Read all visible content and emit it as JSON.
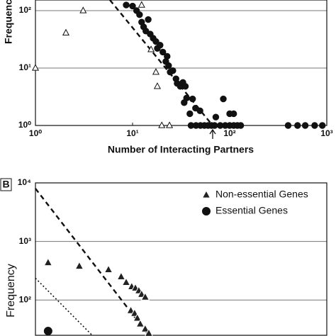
{
  "chart_data": [
    {
      "type": "scatter",
      "xlabel": "Number of Interacting Partners",
      "ylabel": "Frequency",
      "log_x": true,
      "log_y": true,
      "grid": true,
      "xlim": [
        1,
        1000
      ],
      "ylim": [
        1,
        153
      ],
      "xticks": [
        {
          "value": 1,
          "label": "10⁰"
        },
        {
          "value": 10,
          "label": "10¹"
        },
        {
          "value": 100,
          "label": "10²"
        },
        {
          "value": 1000,
          "label": "10³"
        }
      ],
      "yticks": [
        {
          "value": 1,
          "label": "10⁰"
        },
        {
          "value": 10,
          "label": "10¹"
        },
        {
          "value": 100,
          "label": "10²"
        }
      ],
      "series": [
        {
          "marker": "triangle",
          "color": "#111111",
          "fill": "#ffffff",
          "x": [
            1,
            2.06,
            3.1,
            12.4,
            15.5,
            17.4,
            18,
            20,
            24
          ],
          "y": [
            10,
            41,
            100,
            125,
            21,
            8.5,
            4.8,
            1,
            1
          ]
        },
        {
          "marker": "circle",
          "color": "#111111",
          "fill": "#111111",
          "x": [
            8.6,
            10,
            11,
            11.8,
            12.4,
            13,
            13.7,
            14.5,
            15.2,
            16.3,
            17.4,
            18,
            19.2,
            20.5,
            22,
            22.7,
            23.5,
            24.4,
            26,
            28,
            28.8,
            31,
            33,
            35,
            36,
            34,
            38.9,
            41.5,
            44.5,
            49.5,
            72,
            86,
            100,
            110,
            40,
            45,
            50,
            55,
            60,
            65,
            70,
            80,
            90,
            100,
            110,
            120,
            130,
            400,
            500,
            600,
            750,
            900
          ],
          "y": [
            125,
            120,
            100,
            85,
            63,
            52,
            44,
            70,
            39,
            33,
            29,
            22,
            25,
            19,
            13,
            16,
            11,
            8.5,
            9,
            6.5,
            5.4,
            4.8,
            5.6,
            4.8,
            3,
            2.5,
            1.6,
            2.9,
            2,
            1.8,
            1.4,
            2.9,
            1.6,
            1.6,
            1,
            1,
            1,
            1,
            1,
            1,
            1,
            1,
            1,
            1,
            1,
            1,
            1,
            1,
            1,
            1,
            1,
            1
          ]
        }
      ],
      "lines": [
        {
          "style": "dashed",
          "x": [
            5.84,
            66.8
          ],
          "y": [
            153,
            1
          ]
        }
      ]
    },
    {
      "type": "scatter",
      "panel_label": "B",
      "ylabel": "Frequency",
      "log_x": true,
      "log_y": true,
      "grid": true,
      "legend": "upper right",
      "xlim": [
        1,
        1000
      ],
      "ylim": [
        25,
        10000
      ],
      "yticks": [
        {
          "value": 100,
          "label": "10²"
        },
        {
          "value": 1000,
          "label": "10³"
        },
        {
          "value": 10000,
          "label": "10⁴"
        }
      ],
      "series": [
        {
          "name": "Non-essential Genes",
          "marker": "triangle",
          "color": "#ffffff",
          "fill": "#222222",
          "x": [
            1.35,
            2.83,
            5.65,
            7.63,
            8.6,
            9.8,
            10.7,
            11.6,
            12.4,
            13.5,
            9.6,
            10.5,
            11.2,
            12.0,
            13.5,
            14.7
          ],
          "y": [
            435,
            379,
            330,
            250,
            200,
            169,
            160,
            144,
            125,
            112,
            66,
            59,
            49,
            39,
            32,
            27
          ]
        },
        {
          "name": "Essential Genes",
          "marker": "circle",
          "color": "#111111",
          "fill": "#111111",
          "x": [
            1.35
          ],
          "y": [
            29.5
          ]
        }
      ],
      "lines": [
        {
          "style": "dashed",
          "x": [
            1,
            14.7
          ],
          "y": [
            8000,
            25
          ]
        },
        {
          "style": "dotted",
          "x": [
            1,
            3.84
          ],
          "y": [
            236,
            25
          ]
        }
      ]
    }
  ]
}
